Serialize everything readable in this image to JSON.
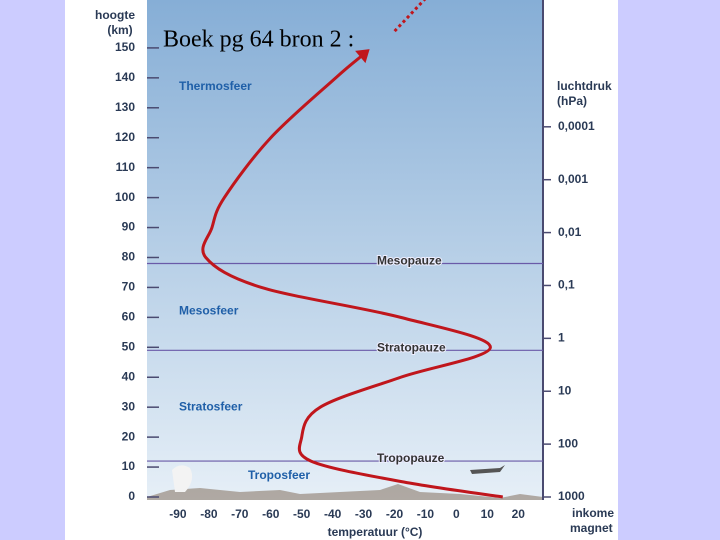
{
  "title": "Boek pg 64  bron 2 :",
  "chart_data": {
    "type": "line",
    "ylabel": [
      "hoogte",
      "(km)"
    ],
    "xlabel": "temperatuur (°C)",
    "y2label": [
      "luchtdruk",
      "(hPa)"
    ],
    "corner_label": [
      "inkome",
      "magnet"
    ],
    "x": [
      15,
      -17,
      -47,
      -50,
      -44,
      -18,
      11,
      -18,
      -63,
      -81,
      -79,
      -75,
      -60,
      -39,
      -31
    ],
    "values": [
      0,
      5,
      12,
      20,
      30,
      40,
      50,
      60,
      70,
      80,
      90,
      100,
      120,
      140,
      147
    ],
    "color": "#c0161c",
    "xlim": [
      -100,
      28
    ],
    "xticks": [
      -90,
      -80,
      -70,
      -60,
      -50,
      -40,
      -30,
      -20,
      -10,
      0,
      10,
      20
    ],
    "ylim": [
      0,
      166
    ],
    "yticks": [
      0,
      10,
      20,
      30,
      40,
      50,
      60,
      70,
      80,
      90,
      100,
      110,
      120,
      130,
      140,
      150
    ],
    "y2log": true,
    "y2lim": [
      1000,
      4e-07
    ],
    "y2ticks": [
      {
        "value": 0.0001,
        "label": "0,0001"
      },
      {
        "value": 0.001,
        "label": "0,001"
      },
      {
        "value": 0.01,
        "label": "0,01"
      },
      {
        "value": 0.1,
        "label": "0,1"
      },
      1,
      10,
      100,
      1000
    ],
    "layers": [
      {
        "text": "Thermosfeer",
        "y": 137
      },
      {
        "text": "Mesosfeer",
        "y": 62
      },
      {
        "text": "Stratosfeer",
        "y": 30
      },
      {
        "text": "Troposfeer",
        "y": 7
      }
    ],
    "pauses": [
      {
        "text": "Mesopauze",
        "y": 78
      },
      {
        "text": "Stratopauze",
        "y": 49
      },
      {
        "text": "Tropopauze",
        "y": 12
      }
    ]
  }
}
